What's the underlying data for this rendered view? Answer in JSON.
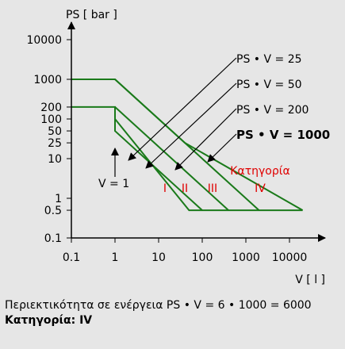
{
  "chart_data": {
    "type": "line",
    "title": "",
    "xlabel": "V [ l ]",
    "ylabel": "PS [ bar ]",
    "x_log": true,
    "y_log": true,
    "xlim": [
      0.1,
      100000
    ],
    "ylim": [
      0.1,
      50000
    ],
    "x_ticks": [
      "0.1",
      "1",
      "10",
      "100",
      "1000",
      "10000"
    ],
    "x_tick_values": [
      0.1,
      1,
      10,
      100,
      1000,
      10000
    ],
    "y_ticks": [
      "0.1",
      "0.5",
      "1",
      "10",
      "25",
      "50",
      "100",
      "200",
      "1000",
      "10000"
    ],
    "y_tick_values": [
      0.1,
      0.5,
      1,
      10,
      25,
      50,
      100,
      200,
      1000,
      10000
    ],
    "series": [
      {
        "x": [
          0.1,
          1,
          40,
          20000
        ],
        "y": [
          1000,
          1000,
          25,
          0.5
        ]
      },
      {
        "x": [
          0.1,
          1,
          1,
          50,
          20000
        ],
        "y": [
          200,
          200,
          100,
          0.5,
          0.5
        ]
      },
      {
        "x": [
          1,
          1,
          100
        ],
        "y": [
          100,
          50,
          0.5
        ]
      },
      {
        "x": [
          1,
          400
        ],
        "y": [
          200,
          0.5
        ]
      },
      {
        "x": [
          1,
          2000
        ],
        "y": [
          1000,
          0.5
        ]
      }
    ],
    "annotations": [
      {
        "text": "PS • V = 25",
        "bold": false
      },
      {
        "text": "PS • V = 50",
        "bold": false
      },
      {
        "text": "PS • V = 200",
        "bold": false
      },
      {
        "text": "PS • V = 1000",
        "bold": true
      },
      {
        "text": "V = 1",
        "bold": false
      }
    ],
    "category_labels": [
      {
        "text": "I"
      },
      {
        "text": "II"
      },
      {
        "text": "III"
      },
      {
        "text": "Κατηγορία"
      },
      {
        "text": "IV"
      }
    ],
    "colors": {
      "line": "#1a7a1a",
      "axis": "#000000",
      "category": "#e00000"
    }
  },
  "footer": {
    "line1": "Περιεκτικότητα σε ενέργεια PS • V = 6 • 1000 = 6000",
    "line2": "Κατηγορία: IV"
  }
}
